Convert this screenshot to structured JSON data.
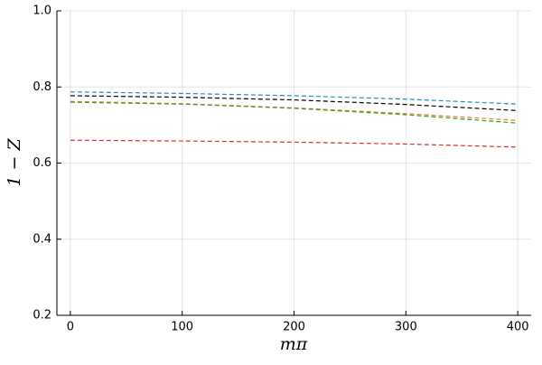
{
  "chart_data": {
    "type": "line",
    "x_label": "mπ",
    "y_label": "1 − Z",
    "x": [
      0,
      100,
      200,
      300,
      400
    ],
    "series": [
      {
        "color": "#1f8fc4",
        "values": [
          0.787,
          0.783,
          0.777,
          0.768,
          0.755
        ]
      },
      {
        "color": "#000000",
        "values": [
          0.777,
          0.773,
          0.766,
          0.754,
          0.738
        ]
      },
      {
        "color": "#e8822a",
        "values": [
          0.762,
          0.756,
          0.745,
          0.73,
          0.712
        ]
      },
      {
        "color": "#3a9a2c",
        "values": [
          0.76,
          0.755,
          0.744,
          0.727,
          0.705
        ]
      },
      {
        "color": "#d6302e",
        "values": [
          0.66,
          0.658,
          0.655,
          0.65,
          0.642
        ]
      }
    ],
    "xlim": [
      -12,
      412
    ],
    "xticks": [
      0,
      100,
      200,
      300,
      400
    ],
    "ylim": [
      0.2,
      1.0
    ],
    "yticks": [
      0.2,
      0.4,
      0.6,
      0.8,
      {
        "value": 1.0,
        "label": "1.0"
      }
    ],
    "grid": true,
    "line_style": "dashed"
  }
}
